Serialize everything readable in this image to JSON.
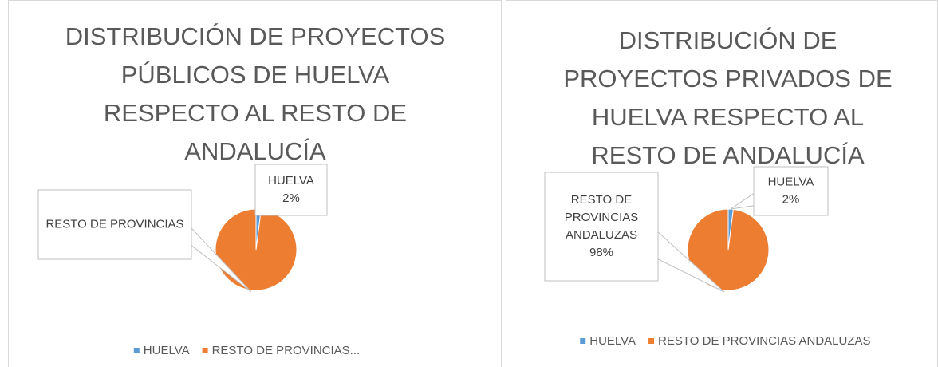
{
  "chart_data": [
    {
      "type": "pie",
      "title": "DISTRIBUCIÓN DE PROYECTOS PÚBLICOS DE HUELVA RESPECTO AL RESTO DE ANDALUCÍA",
      "categories": [
        "HUELVA",
        "RESTO DE PROVINCIAS"
      ],
      "values": [
        2,
        98
      ],
      "value_labels": [
        "2%",
        null
      ],
      "legend_labels": [
        "HUELVA",
        "RESTO DE PROVINCIAS..."
      ],
      "colors": [
        "#5b9bd5",
        "#ed7d31"
      ],
      "legend": "bottom"
    },
    {
      "type": "pie",
      "title": "DISTRIBUCIÓN DE PROYECTOS PRIVADOS DE HUELVA RESPECTO AL RESTO DE ANDALUCÍA",
      "categories": [
        "HUELVA",
        "RESTO DE PROVINCIAS ANDALUZAS"
      ],
      "values": [
        2,
        98
      ],
      "value_labels": [
        "2%",
        "98%"
      ],
      "legend_labels": [
        "HUELVA",
        "RESTO DE PROVINCIAS ANDALUZAS"
      ],
      "colors": [
        "#5b9bd5",
        "#ed7d31"
      ],
      "legend": "bottom"
    }
  ]
}
